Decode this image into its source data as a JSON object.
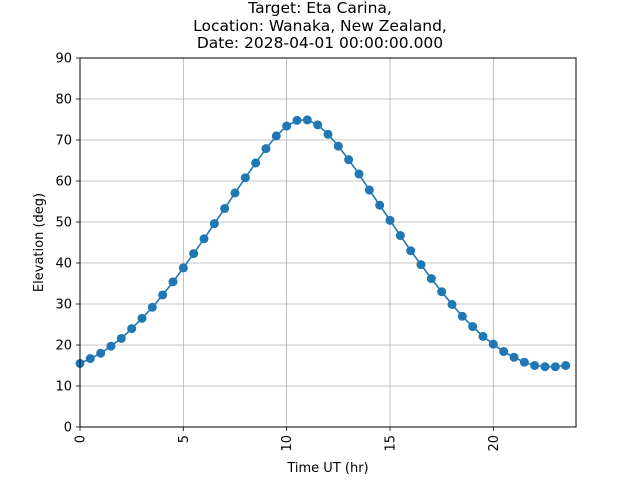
{
  "chart_data": {
    "type": "line",
    "title_lines": [
      "Target: Eta Carina,",
      "Location: Wanaka, New Zealand,",
      "Date: 2028-04-01 00:00:00.000"
    ],
    "xlabel": "Time UT (hr)",
    "ylabel": "Elevation (deg)",
    "xlim": [
      0,
      24
    ],
    "ylim": [
      0,
      90
    ],
    "xticks": [
      0,
      5,
      10,
      15,
      20
    ],
    "yticks": [
      0,
      10,
      20,
      30,
      40,
      50,
      60,
      70,
      80,
      90
    ],
    "grid": true,
    "color": "#1f77b4",
    "series": [
      {
        "x": [
          0,
          0.5,
          1,
          1.5,
          2,
          2.5,
          3,
          3.5,
          4,
          4.5,
          5,
          5.5,
          6,
          6.5,
          7,
          7.5,
          8,
          8.5,
          9,
          9.5,
          10,
          10.5,
          11,
          11.5,
          12,
          12.5,
          13,
          13.5,
          14,
          14.5,
          15,
          15.5,
          16,
          16.5,
          17,
          17.5,
          18,
          18.5,
          19,
          19.5,
          20,
          20.5,
          21,
          21.5,
          22,
          22.5,
          23,
          23.5
        ],
        "values": [
          15.5,
          16.7,
          18.0,
          19.7,
          21.6,
          24.0,
          26.5,
          29.2,
          32.2,
          35.4,
          38.8,
          42.3,
          45.9,
          49.6,
          53.3,
          57.1,
          60.8,
          64.4,
          67.9,
          71.0,
          73.4,
          74.8,
          74.9,
          73.7,
          71.4,
          68.5,
          65.2,
          61.7,
          57.8,
          54.1,
          50.4,
          46.7,
          43.0,
          39.6,
          36.2,
          33.0,
          29.9,
          27.0,
          24.5,
          22.1,
          20.2,
          18.4,
          17.0,
          15.8,
          15.0,
          14.7,
          14.7,
          15.0
        ]
      }
    ]
  }
}
